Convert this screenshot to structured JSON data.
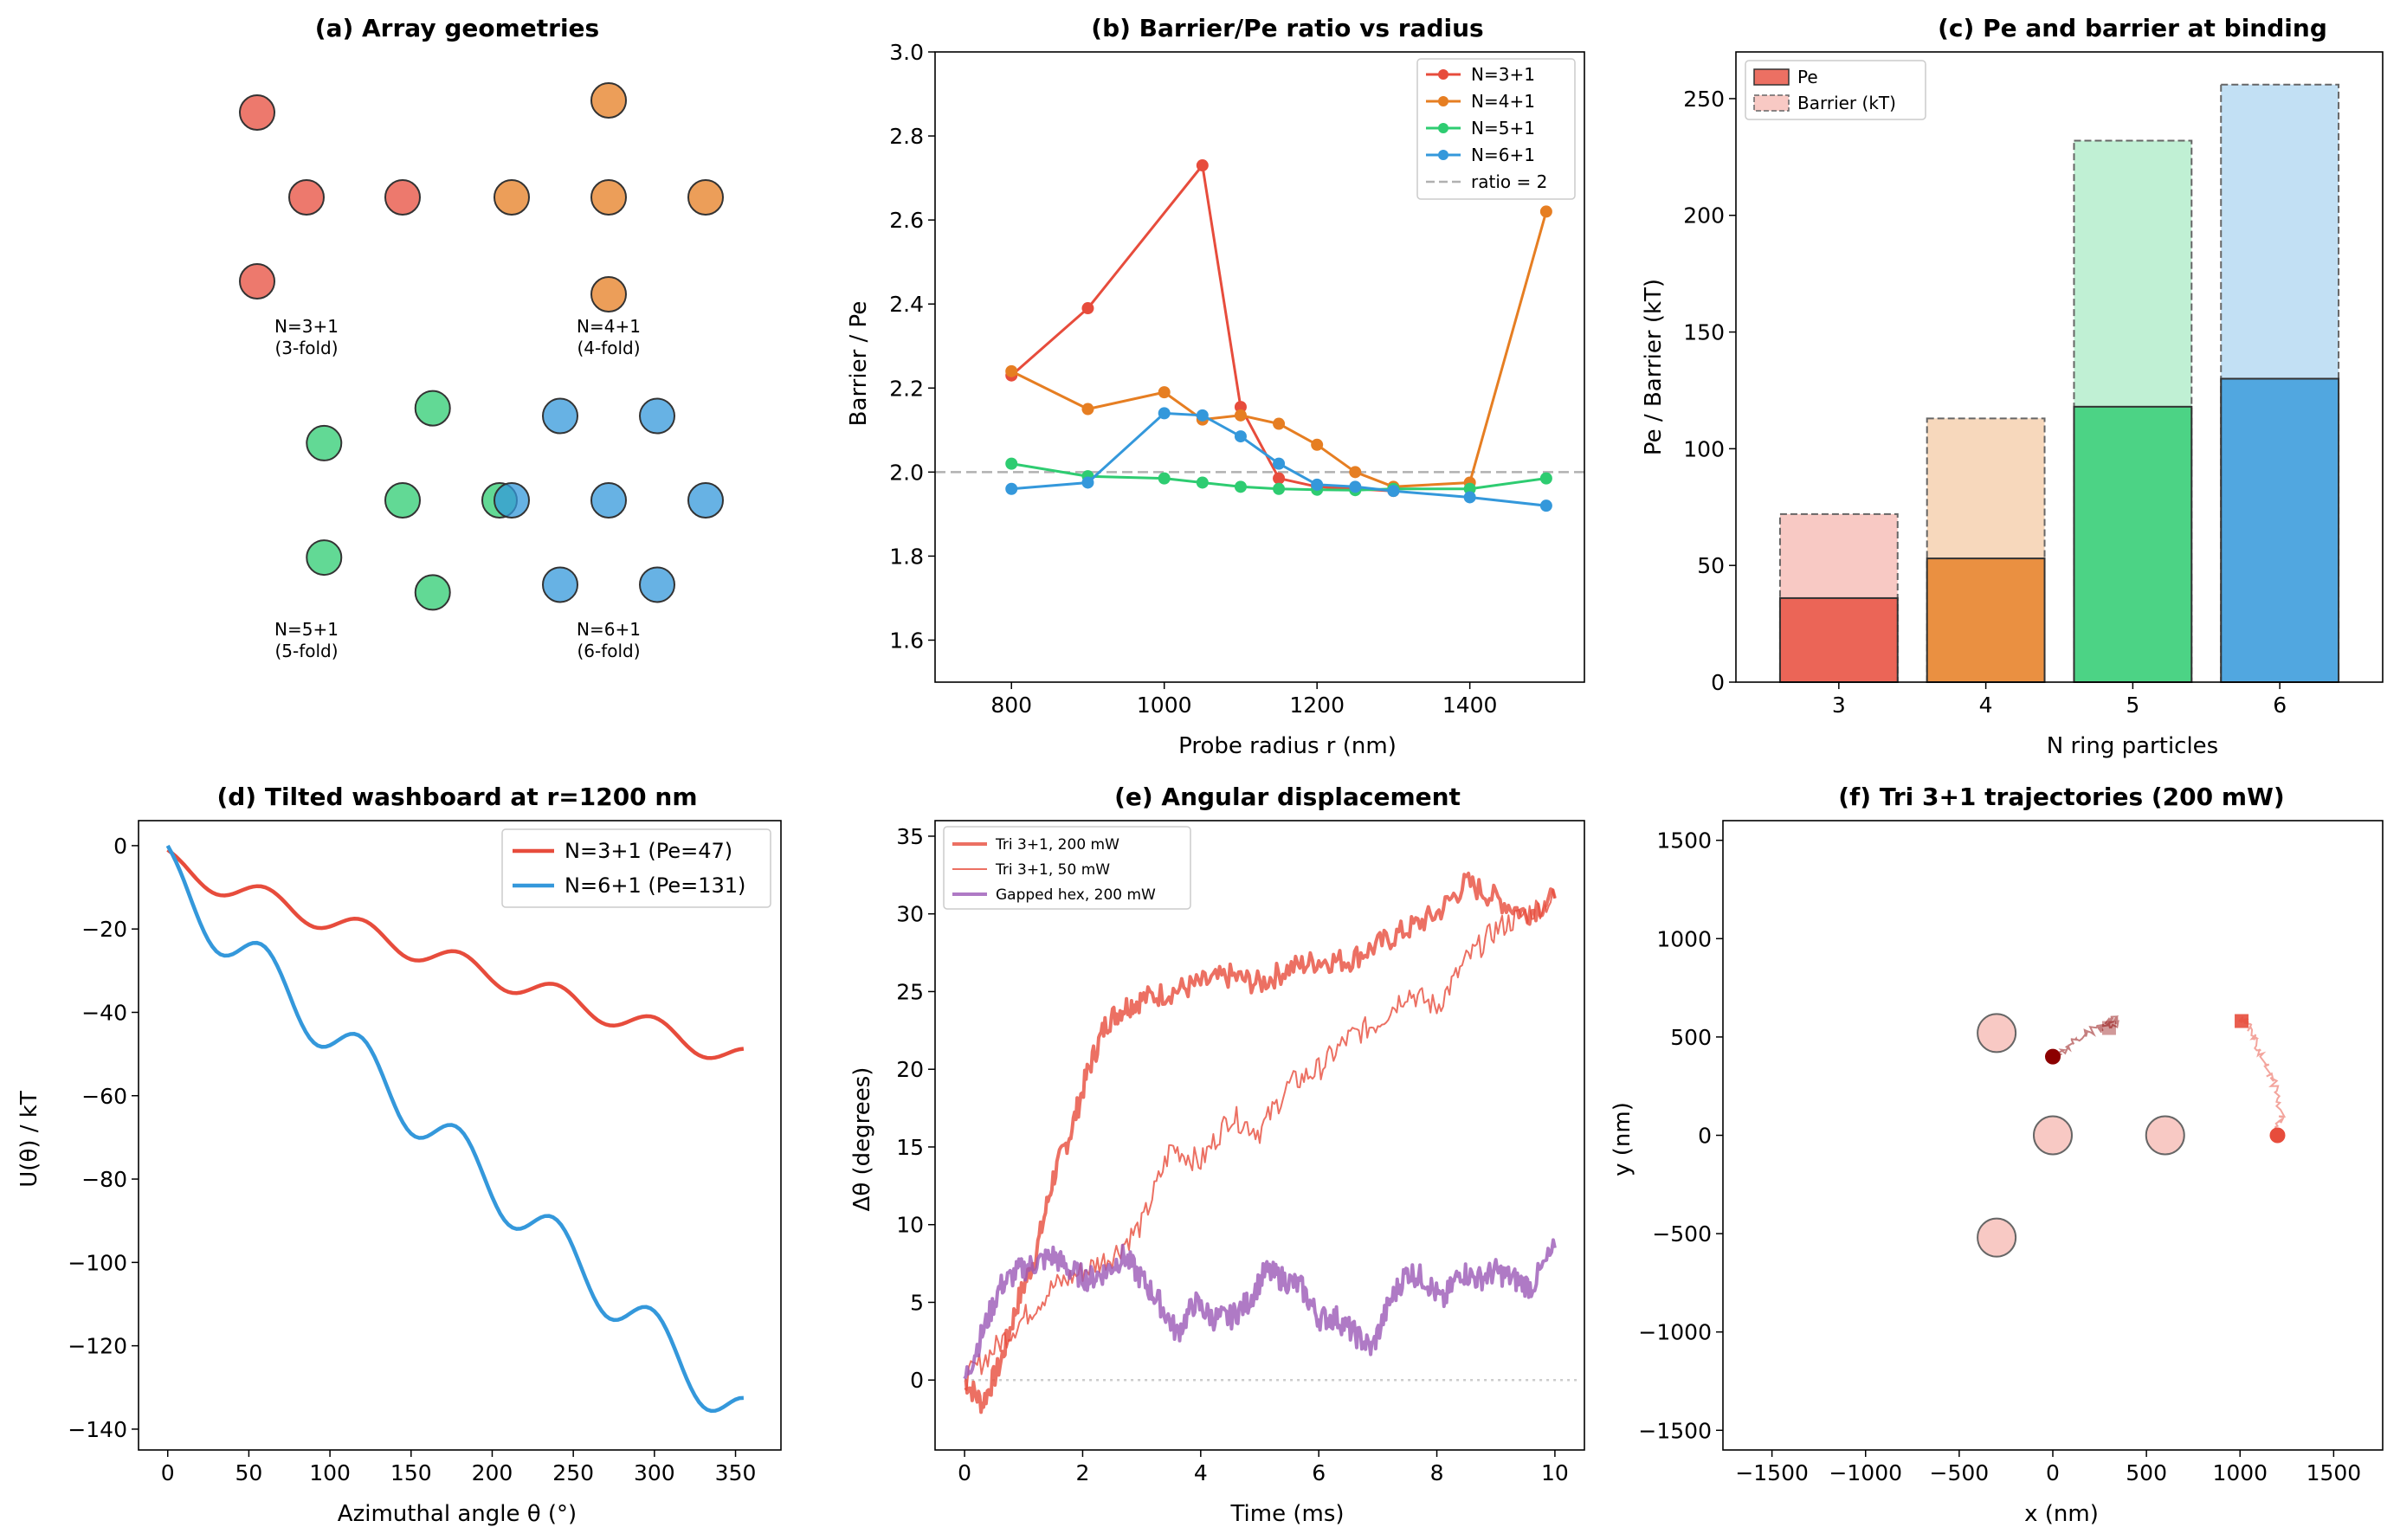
{
  "colors": {
    "red": "#e74c3c",
    "orange": "#e67e22",
    "green": "#2ecc71",
    "blue": "#3498db",
    "purple": "#9b59b6",
    "darkred": "#8b0000"
  },
  "chart_data": [
    {
      "id": "a",
      "type": "diagram",
      "title": "(a) Array geometries",
      "groups": [
        {
          "label1": "N=3+1",
          "label2": "(3-fold)",
          "color": "#e74c3c",
          "points": [
            [
              -0.55,
              1.0
            ],
            [
              -0.55,
              -1.0
            ],
            [
              0,
              0
            ],
            [
              1,
              0
            ]
          ]
        },
        {
          "label1": "N=4+1",
          "label2": "(4-fold)",
          "color": "#e67e22",
          "points": [
            [
              0,
              0
            ],
            [
              1,
              0
            ],
            [
              0,
              1
            ],
            [
              -1,
              0
            ],
            [
              0,
              -1
            ]
          ]
        },
        {
          "label1": "N=5+1",
          "label2": "(5-fold)",
          "color": "#2ecc71",
          "points": [
            [
              0,
              0
            ],
            [
              1,
              0
            ],
            [
              0.31,
              0.95
            ],
            [
              -0.81,
              0.59
            ],
            [
              -0.81,
              -0.59
            ],
            [
              0.31,
              -0.95
            ]
          ]
        },
        {
          "label1": "N=6+1",
          "label2": "(6-fold)",
          "color": "#3498db",
          "points": [
            [
              0,
              0
            ],
            [
              1,
              0
            ],
            [
              0.5,
              0.87
            ],
            [
              -0.5,
              0.87
            ],
            [
              -1,
              0
            ],
            [
              -0.5,
              -0.87
            ],
            [
              0.5,
              -0.87
            ]
          ]
        }
      ]
    },
    {
      "id": "b",
      "type": "line",
      "title": "(b) Barrier/Pe ratio vs radius",
      "xlabel": "Probe radius r (nm)",
      "ylabel": "Barrier / Pe",
      "xlim": [
        700,
        1550
      ],
      "ylim": [
        1.5,
        3.0
      ],
      "xticks": [
        800,
        1000,
        1200,
        1400
      ],
      "yticks": [
        1.6,
        1.8,
        2.0,
        2.2,
        2.4,
        2.6,
        2.8,
        3.0
      ],
      "series": [
        {
          "name": "N=3+1",
          "color": "#e74c3c",
          "x": [
            800,
            900,
            1050,
            1100,
            1150,
            1200,
            1250,
            1300
          ],
          "y": [
            2.23,
            2.39,
            2.73,
            2.155,
            1.985,
            1.965,
            1.96,
            1.955
          ]
        },
        {
          "name": "N=4+1",
          "color": "#e67e22",
          "x": [
            800,
            900,
            1000,
            1050,
            1100,
            1150,
            1200,
            1250,
            1300,
            1400,
            1500
          ],
          "y": [
            2.24,
            2.15,
            2.19,
            2.125,
            2.135,
            2.115,
            2.065,
            2.0,
            1.965,
            1.975,
            2.62
          ]
        },
        {
          "name": "N=5+1",
          "color": "#2ecc71",
          "x": [
            800,
            900,
            1000,
            1050,
            1100,
            1150,
            1200,
            1250,
            1300,
            1400,
            1500
          ],
          "y": [
            2.02,
            1.99,
            1.985,
            1.975,
            1.965,
            1.96,
            1.958,
            1.957,
            1.96,
            1.96,
            1.985
          ]
        },
        {
          "name": "N=6+1",
          "color": "#3498db",
          "x": [
            800,
            900,
            1000,
            1050,
            1100,
            1150,
            1200,
            1250,
            1300,
            1400,
            1500
          ],
          "y": [
            1.96,
            1.975,
            2.14,
            2.135,
            2.085,
            2.02,
            1.97,
            1.965,
            1.955,
            1.94,
            1.92
          ]
        }
      ],
      "reference": {
        "name": "ratio = 2",
        "y": 2.0
      }
    },
    {
      "id": "c",
      "type": "bar",
      "title": "(c) Pe and barrier at binding",
      "xlabel": "N ring particles",
      "ylabel": "Pe / Barrier (kT)",
      "categories": [
        "3",
        "4",
        "5",
        "6"
      ],
      "ylim": [
        0,
        270
      ],
      "yticks": [
        0,
        50,
        100,
        150,
        200,
        250
      ],
      "series": [
        {
          "name": "Pe",
          "values": [
            36,
            53,
            118,
            130
          ]
        },
        {
          "name": "Barrier (kT)",
          "values": [
            72,
            113,
            232,
            256
          ]
        }
      ],
      "bar_colors": [
        "#e74c3c",
        "#e67e22",
        "#2ecc71",
        "#3498db"
      ]
    },
    {
      "id": "d",
      "type": "line",
      "title": "(d) Tilted washboard at r=1200 nm",
      "xlabel": "Azimuthal angle θ (°)",
      "ylabel": "U(θ) / kT",
      "xlim": [
        -18,
        378
      ],
      "ylim": [
        -145,
        6
      ],
      "xticks": [
        0,
        50,
        100,
        150,
        200,
        250,
        300,
        350
      ],
      "yticks": [
        0,
        -20,
        -40,
        -60,
        -80,
        -100,
        -120,
        -140
      ],
      "series": [
        {
          "name": "N=3+1 (Pe=47)",
          "color": "#e74c3c",
          "slope": -0.13,
          "amplitude": 2.8,
          "period": 60,
          "offset": -2.2
        },
        {
          "name": "N=6+1 (Pe=131)",
          "color": "#3498db",
          "slope": -0.364,
          "amplitude": 6.0,
          "period": 60,
          "offset": -2.5
        }
      ]
    },
    {
      "id": "e",
      "type": "line",
      "title": "(e) Angular displacement",
      "xlabel": "Time (ms)",
      "ylabel": "Δθ (degrees)",
      "xlim": [
        -0.5,
        10.5
      ],
      "ylim": [
        -4.5,
        36
      ],
      "xticks": [
        0,
        2,
        4,
        6,
        8,
        10
      ],
      "yticks": [
        0,
        5,
        10,
        15,
        20,
        25,
        30,
        35
      ],
      "series": [
        {
          "name": "Tri 3+1, 200 mW",
          "color": "#e74c3c",
          "width": 4,
          "x": [
            0,
            0.3,
            0.6,
            0.9,
            1.2,
            1.5,
            1.8,
            2.1,
            2.4,
            2.7,
            3.0,
            3.5,
            4.0,
            4.5,
            5.0,
            5.5,
            6.0,
            6.5,
            7.0,
            7.5,
            8.0,
            8.5,
            9.0,
            9.5,
            10.0
          ],
          "y": [
            0,
            -1.5,
            1,
            5,
            8,
            13,
            16,
            20,
            23,
            24,
            24.5,
            25,
            25.5,
            26,
            25.5,
            26.5,
            27,
            27,
            28,
            29,
            30,
            32,
            31,
            30,
            31
          ]
        },
        {
          "name": "Tri 3+1, 50 mW",
          "color": "#e74c3c",
          "width": 2,
          "x": [
            0,
            0.5,
            1.0,
            1.5,
            2.0,
            2.5,
            3.0,
            3.5,
            4.0,
            4.5,
            5.0,
            5.5,
            6.0,
            6.5,
            7.0,
            7.5,
            8.0,
            8.5,
            9.0,
            9.5,
            10.0
          ],
          "y": [
            0,
            2,
            4,
            6,
            7,
            8,
            10,
            15,
            14,
            17,
            16,
            19,
            20,
            22,
            23,
            25,
            24,
            27,
            29,
            30,
            31
          ]
        },
        {
          "name": "Gapped hex, 200 mW",
          "color": "#9b59b6",
          "width": 4,
          "x": [
            0,
            0.3,
            0.6,
            0.9,
            1.2,
            1.5,
            1.8,
            2.1,
            2.4,
            2.7,
            3.0,
            3.3,
            3.6,
            3.9,
            4.2,
            4.5,
            4.8,
            5.1,
            5.4,
            5.7,
            6.0,
            6.3,
            6.6,
            6.9,
            7.2,
            7.5,
            7.8,
            8.1,
            8.4,
            8.7,
            9.0,
            9.3,
            9.6,
            10.0
          ],
          "y": [
            0,
            3,
            6,
            7,
            7.5,
            8,
            7,
            6.5,
            7,
            8,
            6.5,
            5,
            3,
            5,
            4,
            4,
            5,
            7,
            6.5,
            6,
            4,
            4,
            3,
            2,
            5,
            7,
            6.5,
            5,
            7,
            6.5,
            7,
            6.5,
            6,
            8.5
          ]
        }
      ],
      "reference": {
        "y": 0
      }
    },
    {
      "id": "f",
      "type": "scatter",
      "title": "(f) Tri 3+1 trajectories (200 mW)",
      "xlabel": "x (nm)",
      "ylabel": "y (nm)",
      "xlim": [
        -1600,
        1600
      ],
      "ylim": [
        -1600,
        1600
      ],
      "xticks": [
        -1500,
        -1000,
        -500,
        0,
        500,
        1000,
        1500
      ],
      "yticks": [
        -1500,
        -1000,
        -500,
        0,
        500,
        1000,
        1500
      ],
      "array_particles": [
        [
          0,
          0
        ],
        [
          600,
          0
        ],
        [
          -300,
          520
        ],
        [
          -300,
          -520
        ]
      ],
      "trajectories": [
        {
          "color": "#8b0000",
          "start": [
            0,
            400
          ],
          "x": [
            0,
            50,
            100,
            150,
            200,
            250,
            280,
            300,
            320,
            340,
            330,
            310
          ],
          "y": [
            400,
            430,
            470,
            500,
            530,
            540,
            560,
            580,
            590,
            580,
            570,
            560
          ]
        },
        {
          "color": "#e74c3c",
          "start": [
            1200,
            0
          ],
          "x": [
            1200,
            1210,
            1220,
            1200,
            1180,
            1150,
            1120,
            1100,
            1080,
            1060,
            1040,
            1020,
            1000
          ],
          "y": [
            0,
            50,
            100,
            180,
            260,
            340,
            400,
            450,
            500,
            540,
            570,
            590,
            600
          ]
        }
      ]
    }
  ]
}
